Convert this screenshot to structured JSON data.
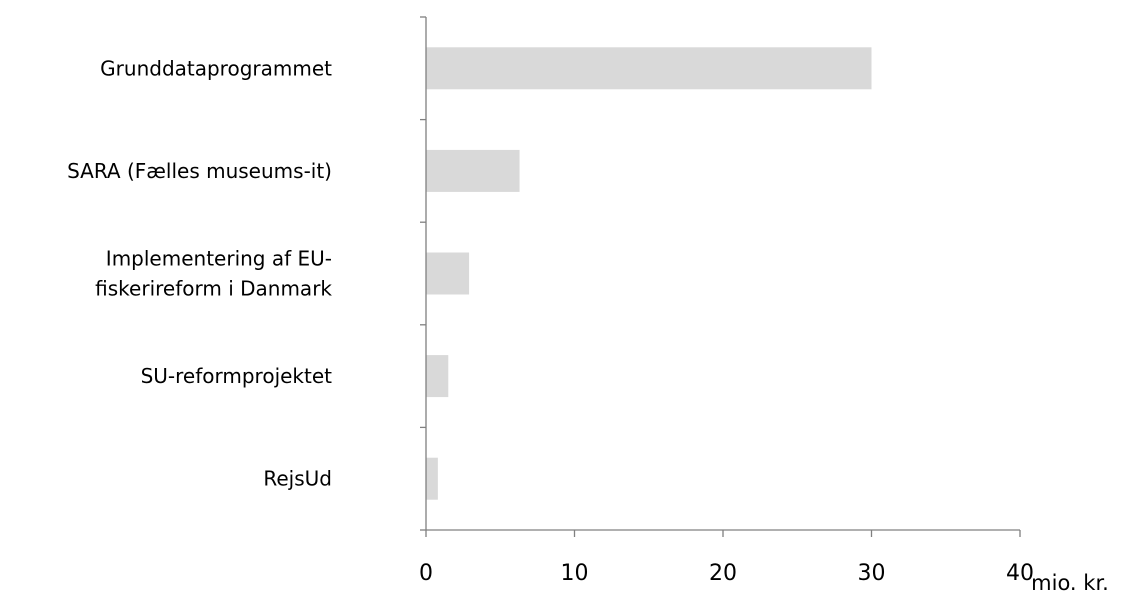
{
  "chart_data": {
    "type": "bar",
    "orientation": "horizontal",
    "categories": [
      [
        "Grunddataprogrammet"
      ],
      [
        "SARA (Fælles museums-it)"
      ],
      [
        "Implementering af EU-",
        "fiskerireform i Danmark"
      ],
      [
        "SU-reformprojektet"
      ],
      [
        "RejsUd"
      ]
    ],
    "values": [
      30,
      6.3,
      2.9,
      1.5,
      0.8
    ],
    "xlim": [
      0,
      40
    ],
    "xticks": [
      "0",
      "10",
      "20",
      "30",
      "40"
    ],
    "unit_label": "mio. kr.",
    "grid": false,
    "bar_color": "#d9d9d9",
    "axis_color": "#808080"
  }
}
